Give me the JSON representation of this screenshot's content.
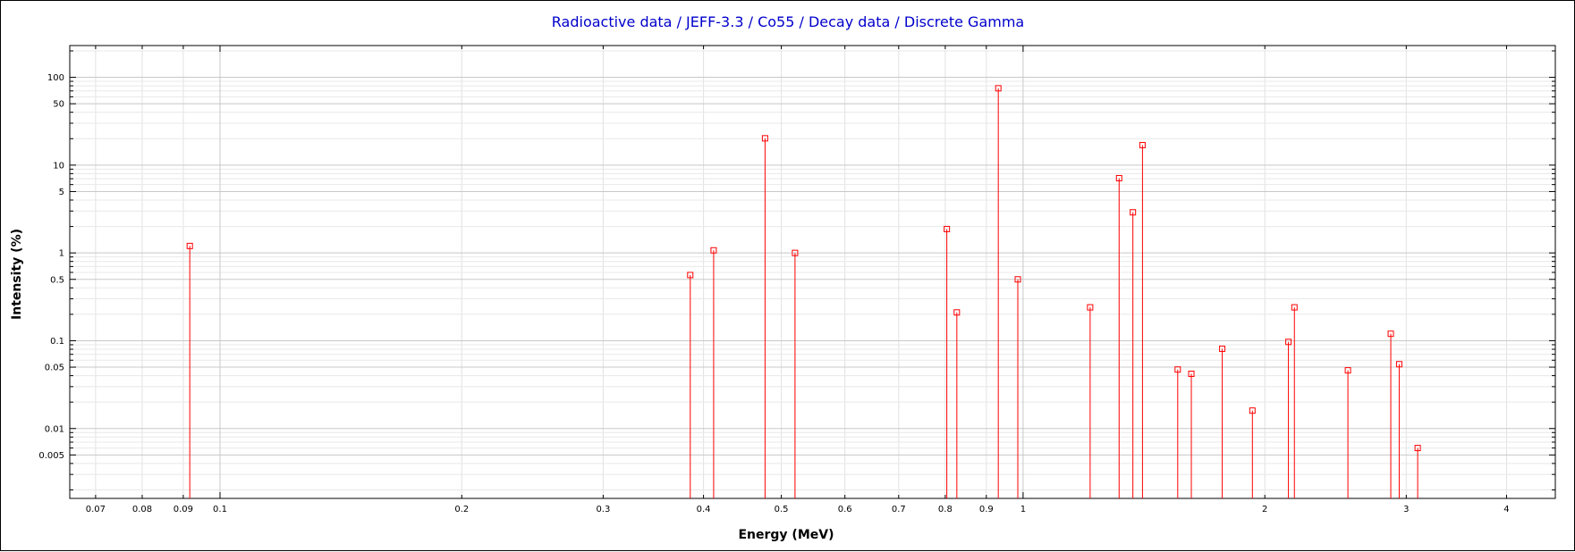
{
  "chart_data": {
    "type": "stem",
    "title": "Radioactive data / JEFF-3.3 / Co55 / Decay data / Discrete Gamma",
    "xlabel": "Energy (MeV)",
    "ylabel": "Intensity (%)",
    "x_scale": "log",
    "y_scale": "log",
    "xlim": [
      0.065,
      4.6
    ],
    "ylim": [
      0.0016,
      230
    ],
    "grid": true,
    "x_ticks": [
      {
        "v": 0.07,
        "label": "0.07"
      },
      {
        "v": 0.08,
        "label": "0.08"
      },
      {
        "v": 0.09,
        "label": "0.09"
      },
      {
        "v": 0.1,
        "label": "0.1"
      },
      {
        "v": 0.2,
        "label": "0.2"
      },
      {
        "v": 0.3,
        "label": "0.3"
      },
      {
        "v": 0.4,
        "label": "0.4"
      },
      {
        "v": 0.5,
        "label": "0.5"
      },
      {
        "v": 0.6,
        "label": "0.6"
      },
      {
        "v": 0.7,
        "label": "0.7"
      },
      {
        "v": 0.8,
        "label": "0.8"
      },
      {
        "v": 0.9,
        "label": "0.9"
      },
      {
        "v": 1,
        "label": "1"
      },
      {
        "v": 2,
        "label": "2"
      },
      {
        "v": 3,
        "label": "3"
      },
      {
        "v": 4,
        "label": "4"
      }
    ],
    "y_ticks": [
      {
        "v": 100,
        "label": "100"
      },
      {
        "v": 50,
        "label": "50"
      },
      {
        "v": 10,
        "label": "10"
      },
      {
        "v": 5,
        "label": "5"
      },
      {
        "v": 1,
        "label": "1"
      },
      {
        "v": 0.5,
        "label": "0.5"
      },
      {
        "v": 0.1,
        "label": "0.1"
      },
      {
        "v": 0.05,
        "label": "0.05"
      },
      {
        "v": 0.01,
        "label": "0.01"
      },
      {
        "v": 0.005,
        "label": "0.005"
      }
    ],
    "series": [
      {
        "color": "#ff0000",
        "points": [
          {
            "x": 0.0917,
            "y": 1.2
          },
          {
            "x": 0.3851,
            "y": 0.56
          },
          {
            "x": 0.4118,
            "y": 1.07
          },
          {
            "x": 0.4772,
            "y": 20.2
          },
          {
            "x": 0.52,
            "y": 1.0
          },
          {
            "x": 0.8036,
            "y": 1.87
          },
          {
            "x": 0.827,
            "y": 0.21
          },
          {
            "x": 0.9314,
            "y": 75.0
          },
          {
            "x": 0.985,
            "y": 0.5
          },
          {
            "x": 1.212,
            "y": 0.24
          },
          {
            "x": 1.317,
            "y": 7.1
          },
          {
            "x": 1.37,
            "y": 2.9
          },
          {
            "x": 1.4083,
            "y": 16.9
          },
          {
            "x": 1.558,
            "y": 0.047
          },
          {
            "x": 1.62,
            "y": 0.042
          },
          {
            "x": 1.77,
            "y": 0.081
          },
          {
            "x": 1.93,
            "y": 0.016
          },
          {
            "x": 2.14,
            "y": 0.097
          },
          {
            "x": 2.177,
            "y": 0.24
          },
          {
            "x": 2.538,
            "y": 0.046
          },
          {
            "x": 2.87,
            "y": 0.12
          },
          {
            "x": 2.94,
            "y": 0.054
          },
          {
            "x": 3.1,
            "y": 0.006
          }
        ]
      }
    ]
  }
}
